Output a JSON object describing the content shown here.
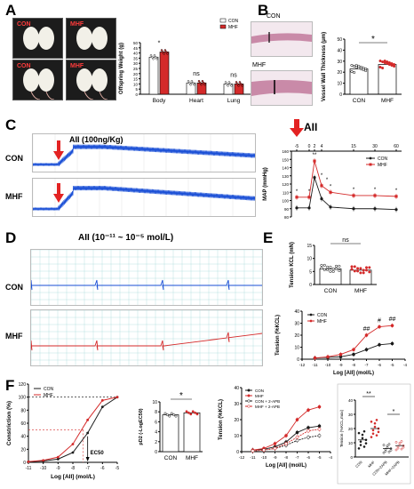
{
  "panels": {
    "a": "A",
    "b": "B",
    "c": "C",
    "d": "D",
    "e": "E",
    "f": "F"
  },
  "colors": {
    "con": "#1a1a1a",
    "mhf": "#d42a2a",
    "blue_trace": "#1a4fd6",
    "red_arrow": "#e32222",
    "grid": "#9fd6d6"
  },
  "panel_a": {
    "photo_labels": [
      "CON",
      "MHF",
      "CON",
      "MHF"
    ],
    "chart_data": {
      "type": "bar",
      "ylabel": "Offspring Weight (g)",
      "categories": [
        "Body",
        "Heart",
        "Lung"
      ],
      "series": [
        {
          "name": "CON",
          "values": [
            36,
            11,
            10
          ]
        },
        {
          "name": "MHF",
          "values": [
            41,
            11,
            10
          ]
        }
      ],
      "yticks": [
        "0",
        "5",
        "10",
        "15",
        "20",
        "25",
        "30",
        "35",
        "40",
        "45",
        "50"
      ],
      "ylim": [
        0,
        50
      ],
      "sig": [
        "*",
        "ns",
        "ns"
      ]
    }
  },
  "panel_b": {
    "label_top": "CON",
    "label_bottom": "MHF",
    "chart_data": {
      "type": "bar",
      "ylabel": "Vessel Wall Thickness (μm)",
      "categories": [
        "CON",
        "MHF"
      ],
      "values": [
        23,
        27
      ],
      "yticks": [
        "0",
        "10",
        "20",
        "30",
        "40",
        "50"
      ],
      "ylim": [
        0,
        50
      ],
      "sig": "*"
    }
  },
  "panel_c": {
    "aii_label": "AII (100ng/Kg)",
    "row_labels": [
      "CON",
      "MHF"
    ],
    "top_label": "AII",
    "chart_data": {
      "type": "line",
      "ylabel": "MAP (mmHg)",
      "top_ticks": [
        "-5",
        "0",
        "2",
        "4",
        "15",
        "30",
        "60"
      ],
      "yticks": [
        "80",
        "90",
        "100",
        "110",
        "120",
        "130",
        "140",
        "150",
        "160"
      ],
      "ylim": [
        80,
        160
      ],
      "series": [
        {
          "name": "CON",
          "values": [
            91,
            91,
            128,
            102,
            92,
            90,
            90,
            89
          ]
        },
        {
          "name": "MHF",
          "values": [
            104,
            104,
            148,
            118,
            110,
            106,
            106,
            105
          ]
        }
      ],
      "sig_marks": [
        "*",
        "*",
        "**",
        "*",
        "*",
        "*",
        "*",
        "*",
        "*"
      ]
    }
  },
  "panel_d": {
    "title": "AII  (10⁻¹¹ ~ 10⁻⁵ mol/L)",
    "row_labels": [
      "CON",
      "MHF"
    ]
  },
  "panel_e": {
    "top_chart": {
      "type": "bar",
      "ylabel": "Tension KCL (mN)",
      "categories": [
        "CON",
        "MHF"
      ],
      "values": [
        6,
        5.5
      ],
      "yticks": [
        "0",
        "5",
        "10",
        "15"
      ],
      "ylim": [
        0,
        15
      ],
      "sig": "ns"
    },
    "bottom_chart": {
      "type": "line",
      "xlabel": "Log [AII] (mol/L)",
      "ylabel": "Tension (%KCL)",
      "xticks": [
        "-12",
        "-11",
        "-10",
        "-9",
        "-8",
        "-7",
        "-6",
        "-5",
        "-4"
      ],
      "yticks": [
        "0",
        "10",
        "20",
        "30",
        "40"
      ],
      "ylim": [
        0,
        40
      ],
      "x": [
        -11,
        -10,
        -9,
        -8,
        -7,
        -6,
        -5
      ],
      "series": [
        {
          "name": "CON",
          "values": [
            1,
            1.5,
            2,
            4,
            8,
            12,
            13
          ]
        },
        {
          "name": "MHF",
          "values": [
            1,
            2,
            4,
            8,
            20,
            27,
            28
          ]
        }
      ],
      "sig": [
        "##",
        "#",
        "##"
      ]
    }
  },
  "panel_f": {
    "ec50_chart": {
      "type": "line",
      "xlabel": "Log [AII] (mol/L)",
      "ylabel": "Constriction (%)",
      "xticks": [
        "-11",
        "-10",
        "-9",
        "-8",
        "-7",
        "-6",
        "-5"
      ],
      "yticks": [
        "0",
        "20",
        "40",
        "60",
        "80",
        "100",
        "120"
      ],
      "ylim": [
        0,
        120
      ],
      "ec50_label": "EC50",
      "series": [
        {
          "name": "CON",
          "values": [
            1,
            2,
            5,
            15,
            45,
            85,
            100
          ]
        },
        {
          "name": "MHF",
          "values": [
            1,
            3,
            8,
            28,
            65,
            95,
            100
          ]
        }
      ]
    },
    "pd2_chart": {
      "type": "bar",
      "ylabel": "pD2 (-LogEC50)",
      "categories": [
        "CON",
        "MHF"
      ],
      "values": [
        7.4,
        7.8
      ],
      "yticks": [
        "0",
        "2",
        "4",
        "6",
        "8",
        "10"
      ],
      "ylim": [
        0,
        10
      ],
      "sig": "*"
    },
    "ape_chart": {
      "type": "line",
      "xlabel": "Log [AII] (mol/L)",
      "ylabel": "Tension (%KCL)",
      "xticks": [
        "-12",
        "-11",
        "-10",
        "-9",
        "-8",
        "-7",
        "-6",
        "-5",
        "-4"
      ],
      "yticks": [
        "0",
        "10",
        "20",
        "30",
        "40"
      ],
      "ylim": [
        0,
        40
      ],
      "x": [
        -11,
        -10,
        -9,
        -8,
        -7,
        -6,
        -5
      ],
      "series": [
        {
          "name": "CON",
          "values": [
            1,
            1.5,
            3,
            6,
            12,
            15,
            16
          ]
        },
        {
          "name": "MHF",
          "values": [
            1,
            2,
            5,
            10,
            20,
            26,
            28
          ]
        },
        {
          "name": "CON + 2-APB",
          "values": [
            0.5,
            1,
            2,
            4,
            7,
            9,
            10
          ]
        },
        {
          "name": "MHF + 2-APB",
          "values": [
            0.5,
            1,
            2,
            5,
            9,
            13,
            14
          ]
        }
      ]
    },
    "scatter_chart": {
      "type": "scatter",
      "ylabel": "Tension (%KCL,max)",
      "categories": [
        "CON",
        "MHF",
        "CON+2APB",
        "MHF+2APB"
      ],
      "values": [
        12,
        20,
        6,
        8
      ],
      "yticks": [
        "0",
        "10",
        "20",
        "30",
        "40"
      ],
      "ylim": [
        0,
        40
      ],
      "sig": [
        "**",
        "*"
      ]
    }
  }
}
